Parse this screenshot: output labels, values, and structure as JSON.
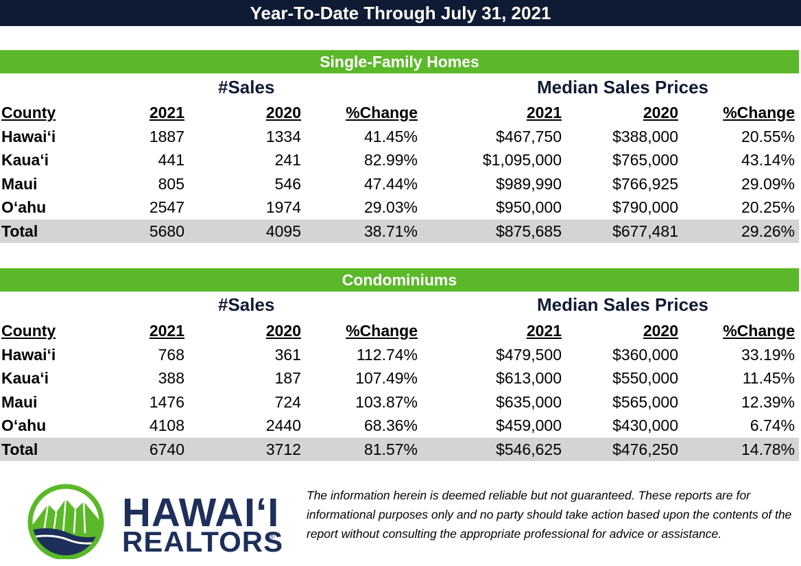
{
  "title": "Year-To-Date Through July 31, 2021",
  "sections": [
    {
      "name": "Single-Family Homes",
      "group_sales": "#Sales",
      "group_prices": "Median Sales Prices",
      "headers": [
        "County",
        "2021",
        "2020",
        "%Change",
        "2021",
        "2020",
        "%Change"
      ],
      "rows": [
        [
          "Hawai‘i",
          "1887",
          "1334",
          "41.45%",
          "$467,750",
          "$388,000",
          "20.55%"
        ],
        [
          "Kaua‘i",
          "441",
          "241",
          "82.99%",
          "$1,095,000",
          "$765,000",
          "43.14%"
        ],
        [
          "Maui",
          "805",
          "546",
          "47.44%",
          "$989,990",
          "$766,925",
          "29.09%"
        ],
        [
          "O‘ahu",
          "2547",
          "1974",
          "29.03%",
          "$950,000",
          "$790,000",
          "20.25%"
        ]
      ],
      "total": [
        "Total",
        "5680",
        "4095",
        "38.71%",
        "$875,685",
        "$677,481",
        "29.26%"
      ]
    },
    {
      "name": "Condominiums",
      "group_sales": "#Sales",
      "group_prices": "Median Sales Prices",
      "headers": [
        "County",
        "2021",
        "2020",
        "%Change",
        "2021",
        "2020",
        "%Change"
      ],
      "rows": [
        [
          "Hawai‘i",
          "768",
          "361",
          "112.74%",
          "$479,500",
          "$360,000",
          "33.19%"
        ],
        [
          "Kaua‘i",
          "388",
          "187",
          "107.49%",
          "$613,000",
          "$550,000",
          "11.45%"
        ],
        [
          "Maui",
          "1476",
          "724",
          "103.87%",
          "$635,000",
          "$565,000",
          "12.39%"
        ],
        [
          "O‘ahu",
          "4108",
          "2440",
          "68.36%",
          "$459,000",
          "$430,000",
          "6.74%"
        ]
      ],
      "total": [
        "Total",
        "6740",
        "3712",
        "81.57%",
        "$546,625",
        "$476,250",
        "14.78%"
      ]
    }
  ],
  "logo": {
    "line1": "HAWAI‘I",
    "line2": "REALTORS",
    "registered": "®",
    "colors": {
      "navy": "#1d2f5a",
      "green": "#5bb829"
    }
  },
  "disclaimer": "The information herein is deemed reliable but not guaranteed. These reports are for informational purposes only and no party should take action based upon the contents of the report without consulting the appropriate professional for advice or assistance.",
  "colors": {
    "title_bg": "#0f1a33",
    "section_bg": "#5bb829",
    "total_bg": "#d4d4d4"
  }
}
